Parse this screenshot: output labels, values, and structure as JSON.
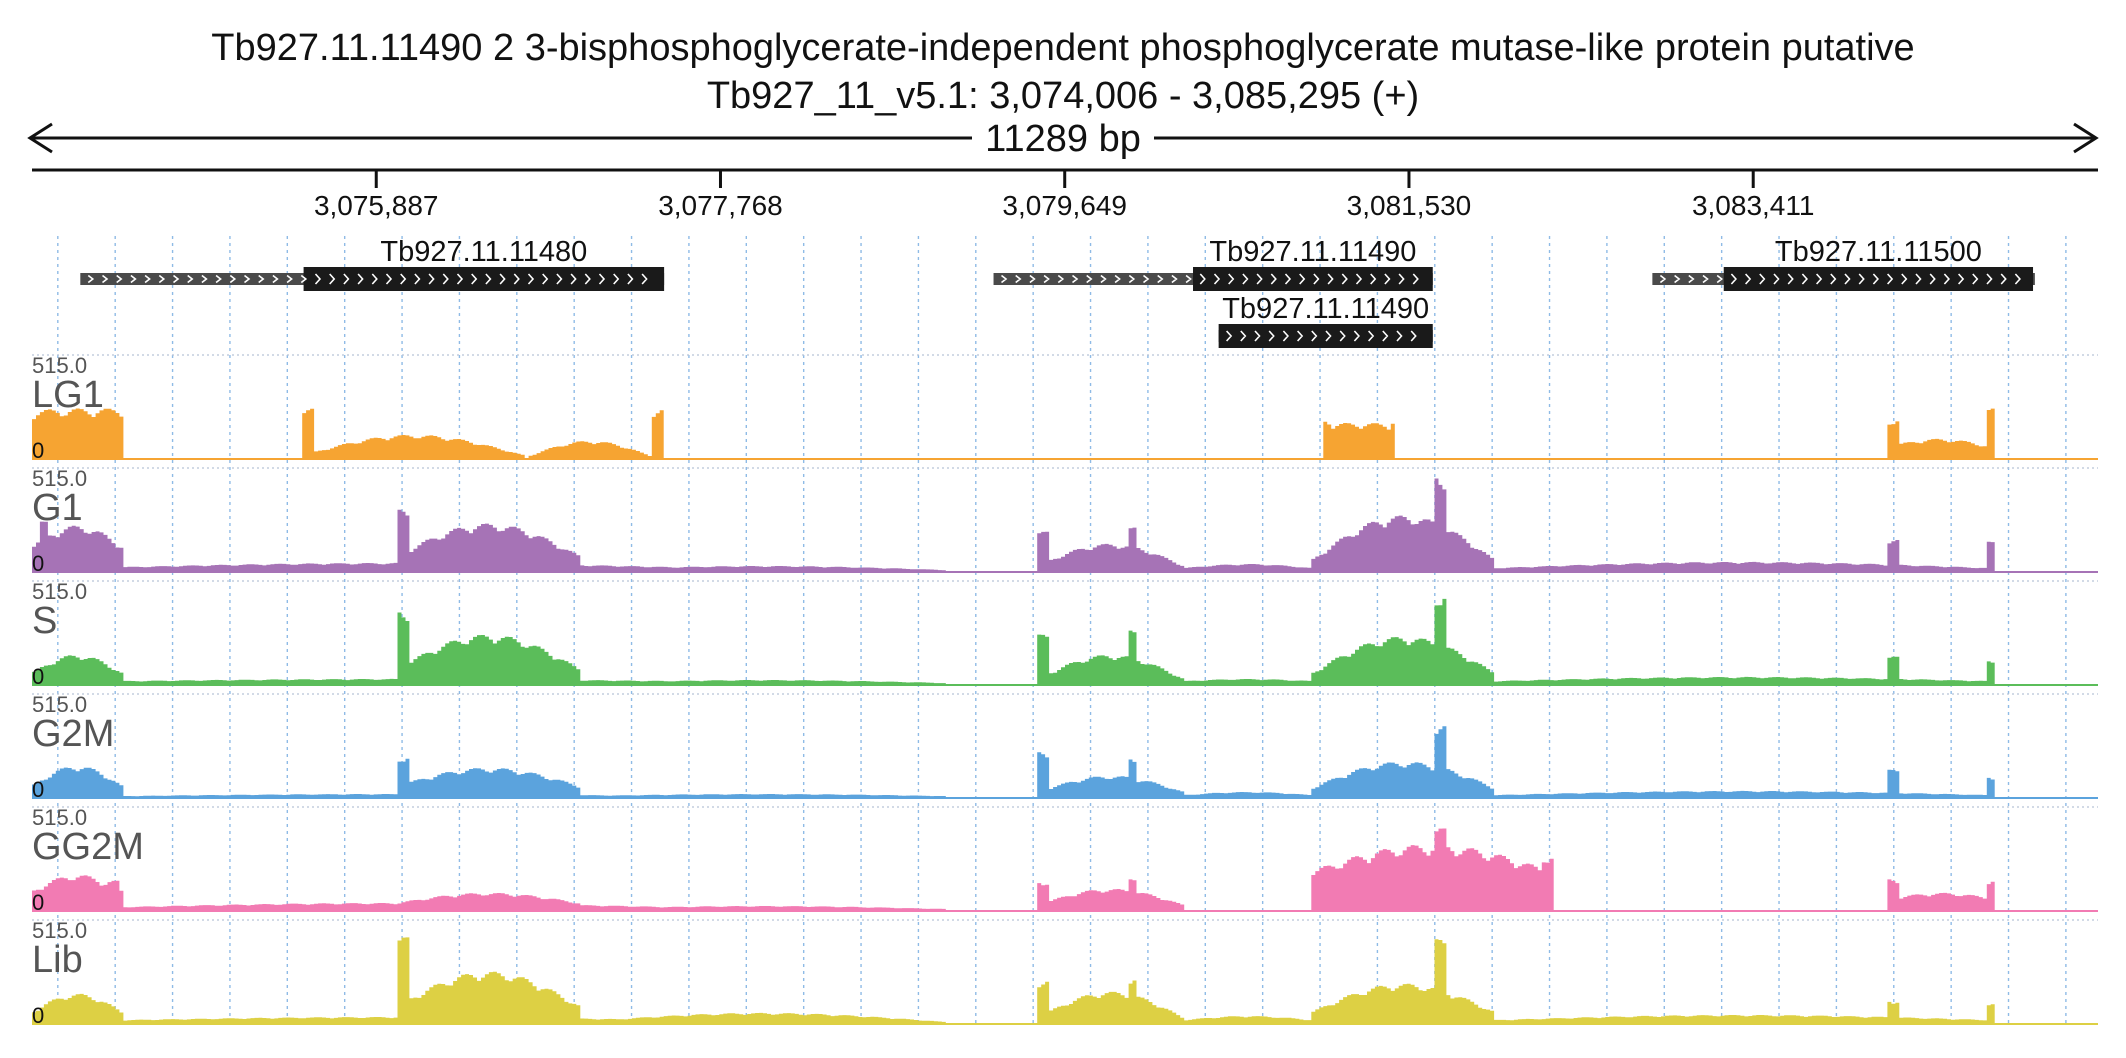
{
  "header": {
    "title": "Tb927.11.11490  2 3-bisphosphoglycerate-independent phosphoglycerate mutase-like protein  putative",
    "locus": "Tb927_11_v5.1: 3,074,006 - 3,085,295 (+)",
    "span_label": "11289 bp"
  },
  "chart_data": {
    "type": "area",
    "region": {
      "chrom": "Tb927_11_v5.1",
      "start": 3074006,
      "end": 3085295,
      "strand": "+"
    },
    "axis_ticks": [
      3075887,
      3077768,
      3079649,
      3081530,
      3083411
    ],
    "axis_tick_labels": [
      "3,075,887",
      "3,077,768",
      "3,079,649",
      "3,081,530",
      "3,083,411"
    ],
    "grid_spacing_bp": 313.5,
    "genes": [
      {
        "name": "Tb927.11.11480",
        "label": "Tb927.11.11480",
        "start": 3074270,
        "end": 3077460,
        "cds_start": 3075490,
        "cds_end": 3077460,
        "row": 0
      },
      {
        "name": "Tb927.11.11490",
        "label": "Tb927.11.11490",
        "start": 3079260,
        "end": 3081660,
        "cds_start": 3080350,
        "cds_end": 3081660,
        "row": 0
      },
      {
        "name": "Tb927.11.11490-alt",
        "label": "Tb927.11.11490",
        "start": 3080490,
        "end": 3081660,
        "cds_start": 3080490,
        "cds_end": 3081660,
        "row": 1
      },
      {
        "name": "Tb927.11.11500",
        "label": "Tb927.11.11500",
        "start": 3082860,
        "end": 3084950,
        "cds_start": 3083250,
        "cds_end": 3084940,
        "row": 0
      }
    ],
    "tracks": [
      {
        "name": "LG1",
        "color": "#f6a432",
        "max_label": "515.0",
        "zero_label": "0"
      },
      {
        "name": "G1",
        "color": "#a673b6",
        "max_label": "515.0",
        "zero_label": "0"
      },
      {
        "name": "S",
        "color": "#5bbd5a",
        "max_label": "515.0",
        "zero_label": "0"
      },
      {
        "name": "G2M",
        "color": "#5ba3dd",
        "max_label": "515.0",
        "zero_label": "0"
      },
      {
        "name": "GG2M",
        "color": "#f27bb3",
        "max_label": "515.0",
        "zero_label": "0"
      },
      {
        "name": "Lib",
        "color": "#ddd044",
        "max_label": "515.0",
        "zero_label": "0"
      }
    ],
    "ylim": [
      0,
      515
    ],
    "coverage_profiles": {
      "LG1": [
        {
          "type": "hump",
          "start": 3074006,
          "end": 3074500,
          "peak": 250,
          "edge": 240
        },
        {
          "type": "block",
          "start": 3074300,
          "end": 3074500,
          "value": 250
        },
        {
          "type": "hump",
          "start": 3075490,
          "end": 3076690,
          "peak": 120,
          "edge": 20
        },
        {
          "type": "block",
          "start": 3075490,
          "end": 3075540,
          "value": 250
        },
        {
          "type": "block",
          "start": 3077400,
          "end": 3077460,
          "value": 250
        },
        {
          "type": "hump",
          "start": 3076710,
          "end": 3077400,
          "peak": 90,
          "edge": 10
        },
        {
          "type": "hump",
          "start": 3081060,
          "end": 3081460,
          "peak": 180,
          "edge": 170
        },
        {
          "type": "block",
          "start": 3081060,
          "end": 3081100,
          "value": 200
        },
        {
          "type": "block",
          "start": 3081420,
          "end": 3081460,
          "value": 200
        },
        {
          "type": "hump",
          "start": 3084140,
          "end": 3084720,
          "peak": 100,
          "edge": 60
        },
        {
          "type": "block",
          "start": 3084140,
          "end": 3084200,
          "value": 200
        },
        {
          "type": "block",
          "start": 3084680,
          "end": 3084740,
          "value": 250
        }
      ],
      "G1": [
        {
          "type": "hump",
          "start": 3074006,
          "end": 3074500,
          "peak": 230,
          "edge": 130
        },
        {
          "type": "block",
          "start": 3074040,
          "end": 3074090,
          "value": 250
        },
        {
          "type": "hump",
          "start": 3074500,
          "end": 3077500,
          "peak": 45,
          "edge": 25
        },
        {
          "type": "hump",
          "start": 3076000,
          "end": 3077000,
          "peak": 240,
          "edge": 80
        },
        {
          "type": "block",
          "start": 3076000,
          "end": 3076060,
          "value": 310
        },
        {
          "type": "hump",
          "start": 3077000,
          "end": 3079000,
          "peak": 30,
          "edge": 10
        },
        {
          "type": "hump",
          "start": 3079500,
          "end": 3080300,
          "peak": 140,
          "edge": 30
        },
        {
          "type": "block",
          "start": 3079500,
          "end": 3079560,
          "value": 200
        },
        {
          "type": "block",
          "start": 3080000,
          "end": 3080040,
          "value": 220
        },
        {
          "type": "hump",
          "start": 3080300,
          "end": 3081000,
          "peak": 40,
          "edge": 20
        },
        {
          "type": "hump",
          "start": 3081000,
          "end": 3082000,
          "peak": 280,
          "edge": 60
        },
        {
          "type": "block",
          "start": 3081680,
          "end": 3081740,
          "value": 490
        },
        {
          "type": "hump",
          "start": 3082000,
          "end": 3084700,
          "peak": 50,
          "edge": 20
        },
        {
          "type": "block",
          "start": 3084140,
          "end": 3084200,
          "value": 160
        },
        {
          "type": "block",
          "start": 3084680,
          "end": 3084740,
          "value": 150
        }
      ],
      "S": [
        {
          "type": "hump",
          "start": 3074006,
          "end": 3074500,
          "peak": 150,
          "edge": 60
        },
        {
          "type": "hump",
          "start": 3074500,
          "end": 3077500,
          "peak": 30,
          "edge": 20
        },
        {
          "type": "hump",
          "start": 3076000,
          "end": 3077000,
          "peak": 250,
          "edge": 80
        },
        {
          "type": "block",
          "start": 3076000,
          "end": 3076060,
          "value": 380
        },
        {
          "type": "hump",
          "start": 3077000,
          "end": 3079000,
          "peak": 25,
          "edge": 10
        },
        {
          "type": "hump",
          "start": 3079500,
          "end": 3080300,
          "peak": 150,
          "edge": 30
        },
        {
          "type": "block",
          "start": 3079500,
          "end": 3079560,
          "value": 250
        },
        {
          "type": "block",
          "start": 3080000,
          "end": 3080040,
          "value": 270
        },
        {
          "type": "hump",
          "start": 3080300,
          "end": 3081000,
          "peak": 30,
          "edge": 20
        },
        {
          "type": "hump",
          "start": 3081000,
          "end": 3082000,
          "peak": 240,
          "edge": 60
        },
        {
          "type": "block",
          "start": 3081680,
          "end": 3081740,
          "value": 460
        },
        {
          "type": "hump",
          "start": 3082000,
          "end": 3084700,
          "peak": 40,
          "edge": 20
        },
        {
          "type": "block",
          "start": 3084140,
          "end": 3084200,
          "value": 140
        },
        {
          "type": "block",
          "start": 3084680,
          "end": 3084740,
          "value": 120
        }
      ],
      "G2M": [
        {
          "type": "hump",
          "start": 3074006,
          "end": 3074500,
          "peak": 160,
          "edge": 60
        },
        {
          "type": "hump",
          "start": 3074500,
          "end": 3077500,
          "peak": 20,
          "edge": 10
        },
        {
          "type": "hump",
          "start": 3076000,
          "end": 3077000,
          "peak": 150,
          "edge": 60
        },
        {
          "type": "block",
          "start": 3076000,
          "end": 3076060,
          "value": 210
        },
        {
          "type": "hump",
          "start": 3077000,
          "end": 3079000,
          "peak": 20,
          "edge": 10
        },
        {
          "type": "hump",
          "start": 3079500,
          "end": 3080300,
          "peak": 110,
          "edge": 30
        },
        {
          "type": "block",
          "start": 3079500,
          "end": 3079560,
          "value": 230
        },
        {
          "type": "block",
          "start": 3080000,
          "end": 3080040,
          "value": 200
        },
        {
          "type": "hump",
          "start": 3080300,
          "end": 3081000,
          "peak": 30,
          "edge": 15
        },
        {
          "type": "hump",
          "start": 3081000,
          "end": 3082000,
          "peak": 180,
          "edge": 50
        },
        {
          "type": "block",
          "start": 3081680,
          "end": 3081740,
          "value": 360
        },
        {
          "type": "hump",
          "start": 3082000,
          "end": 3084700,
          "peak": 35,
          "edge": 15
        },
        {
          "type": "block",
          "start": 3084140,
          "end": 3084200,
          "value": 140
        },
        {
          "type": "block",
          "start": 3084680,
          "end": 3084740,
          "value": 110
        }
      ],
      "GG2M": [
        {
          "type": "hump",
          "start": 3074006,
          "end": 3074500,
          "peak": 180,
          "edge": 100
        },
        {
          "type": "block",
          "start": 3074420,
          "end": 3074480,
          "value": 150
        },
        {
          "type": "hump",
          "start": 3074500,
          "end": 3077500,
          "peak": 40,
          "edge": 20
        },
        {
          "type": "hump",
          "start": 3076000,
          "end": 3077000,
          "peak": 90,
          "edge": 40
        },
        {
          "type": "hump",
          "start": 3077000,
          "end": 3079000,
          "peak": 25,
          "edge": 10
        },
        {
          "type": "hump",
          "start": 3079500,
          "end": 3080300,
          "peak": 110,
          "edge": 30
        },
        {
          "type": "block",
          "start": 3079500,
          "end": 3079560,
          "value": 150
        },
        {
          "type": "block",
          "start": 3080000,
          "end": 3080040,
          "value": 180
        },
        {
          "type": "hump",
          "start": 3081000,
          "end": 3082300,
          "peak": 330,
          "edge": 200
        },
        {
          "type": "block",
          "start": 3081680,
          "end": 3081740,
          "value": 410
        },
        {
          "type": "block",
          "start": 3082250,
          "end": 3082320,
          "value": 280
        },
        {
          "type": "hump",
          "start": 3084140,
          "end": 3084740,
          "peak": 90,
          "edge": 60
        },
        {
          "type": "block",
          "start": 3084140,
          "end": 3084200,
          "value": 160
        },
        {
          "type": "block",
          "start": 3084680,
          "end": 3084740,
          "value": 160
        }
      ],
      "Lib": [
        {
          "type": "hump",
          "start": 3074006,
          "end": 3074500,
          "peak": 150,
          "edge": 60
        },
        {
          "type": "hump",
          "start": 3074500,
          "end": 3077500,
          "peak": 35,
          "edge": 20
        },
        {
          "type": "hump",
          "start": 3076000,
          "end": 3077000,
          "peak": 260,
          "edge": 90
        },
        {
          "type": "block",
          "start": 3076000,
          "end": 3076060,
          "value": 430
        },
        {
          "type": "hump",
          "start": 3077000,
          "end": 3079000,
          "peak": 55,
          "edge": 10
        },
        {
          "type": "hump",
          "start": 3079500,
          "end": 3080300,
          "peak": 160,
          "edge": 30
        },
        {
          "type": "block",
          "start": 3079500,
          "end": 3079560,
          "value": 220
        },
        {
          "type": "block",
          "start": 3080000,
          "end": 3080040,
          "value": 230
        },
        {
          "type": "hump",
          "start": 3080300,
          "end": 3081000,
          "peak": 40,
          "edge": 20
        },
        {
          "type": "hump",
          "start": 3081000,
          "end": 3082000,
          "peak": 200,
          "edge": 60
        },
        {
          "type": "block",
          "start": 3081680,
          "end": 3081740,
          "value": 420
        },
        {
          "type": "hump",
          "start": 3082000,
          "end": 3084700,
          "peak": 45,
          "edge": 20
        },
        {
          "type": "block",
          "start": 3084140,
          "end": 3084200,
          "value": 120
        },
        {
          "type": "block",
          "start": 3084680,
          "end": 3084740,
          "value": 100
        }
      ]
    }
  }
}
